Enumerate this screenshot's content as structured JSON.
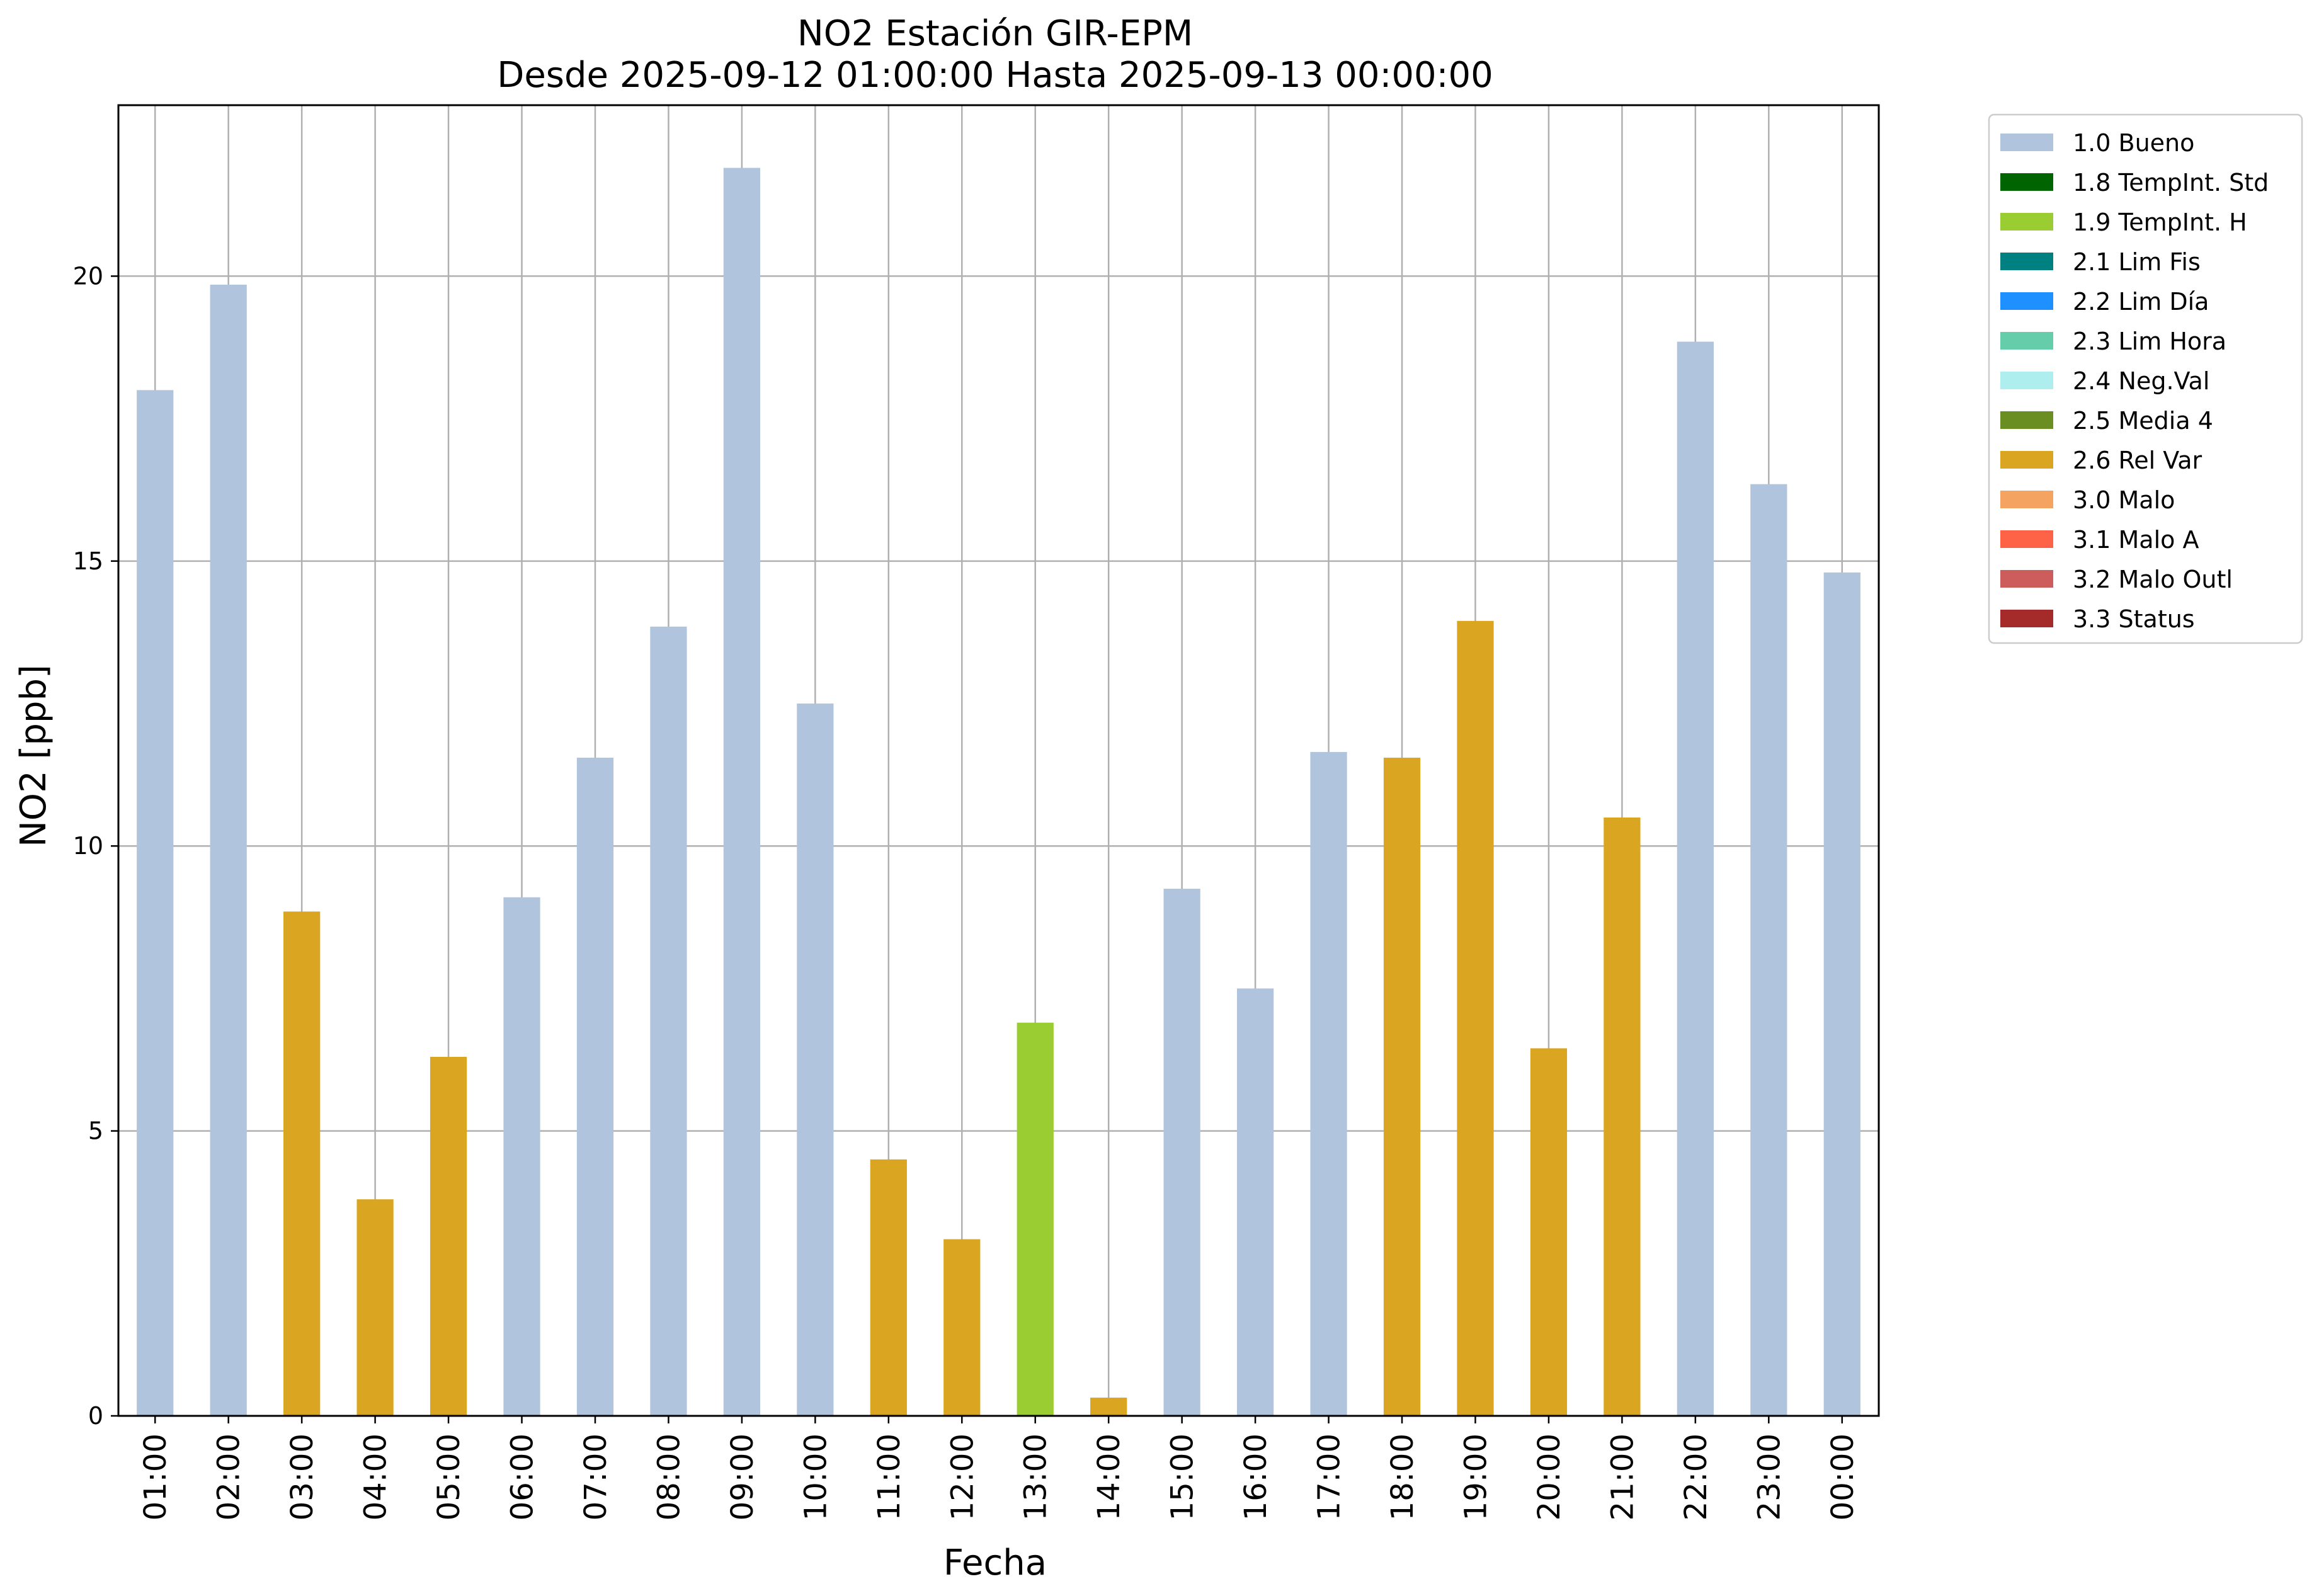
{
  "chart_data": {
    "type": "bar",
    "title": "NO2 Estación GIR-EPM",
    "subtitle": "Desde 2025-09-12 01:00:00 Hasta 2025-09-13 00:00:00",
    "xlabel": "Fecha",
    "ylabel": "NO2 [ppb]",
    "ylim": [
      0,
      23
    ],
    "yticks": [
      0,
      5,
      10,
      15,
      20
    ],
    "grid": true,
    "legend_position": "outside-top-right",
    "categories": [
      "01:00",
      "02:00",
      "03:00",
      "04:00",
      "05:00",
      "06:00",
      "07:00",
      "08:00",
      "09:00",
      "10:00",
      "11:00",
      "12:00",
      "13:00",
      "14:00",
      "15:00",
      "16:00",
      "17:00",
      "18:00",
      "19:00",
      "20:00",
      "21:00",
      "22:00",
      "23:00",
      "00:00"
    ],
    "values": [
      18.0,
      19.85,
      8.85,
      3.8,
      6.3,
      9.1,
      11.55,
      13.85,
      21.9,
      12.5,
      4.5,
      3.1,
      6.9,
      0.32,
      9.25,
      7.5,
      11.65,
      11.55,
      13.95,
      6.45,
      10.5,
      18.85,
      16.35,
      14.8
    ],
    "flags": [
      "1.0 Bueno",
      "1.0 Bueno",
      "2.6 Rel Var",
      "2.6 Rel Var",
      "2.6 Rel Var",
      "1.0 Bueno",
      "1.0 Bueno",
      "1.0 Bueno",
      "1.0 Bueno",
      "1.0 Bueno",
      "2.6 Rel Var",
      "2.6 Rel Var",
      "1.9 TempInt. H",
      "2.6 Rel Var",
      "1.0 Bueno",
      "1.0 Bueno",
      "1.0 Bueno",
      "2.6 Rel Var",
      "2.6 Rel Var",
      "2.6 Rel Var",
      "2.6 Rel Var",
      "1.0 Bueno",
      "1.0 Bueno",
      "1.0 Bueno"
    ],
    "legend": [
      {
        "label": "1.0 Bueno",
        "color": "#b0c4de"
      },
      {
        "label": "1.8 TempInt. Std",
        "color": "#006400"
      },
      {
        "label": "1.9 TempInt. H",
        "color": "#9acd32"
      },
      {
        "label": "2.1 Lim Fis",
        "color": "#008080"
      },
      {
        "label": "2.2 Lim Día",
        "color": "#1e90ff"
      },
      {
        "label": "2.3 Lim Hora",
        "color": "#66cdaa"
      },
      {
        "label": "2.4 Neg.Val",
        "color": "#afeeee"
      },
      {
        "label": "2.5 Media 4",
        "color": "#6b8e23"
      },
      {
        "label": "2.6 Rel Var",
        "color": "#daa520"
      },
      {
        "label": "3.0 Malo",
        "color": "#f4a460"
      },
      {
        "label": "3.1 Malo A",
        "color": "#ff6347"
      },
      {
        "label": "3.2 Malo Outl",
        "color": "#cd5c5c"
      },
      {
        "label": "3.3 Status",
        "color": "#a52a2a"
      }
    ]
  }
}
